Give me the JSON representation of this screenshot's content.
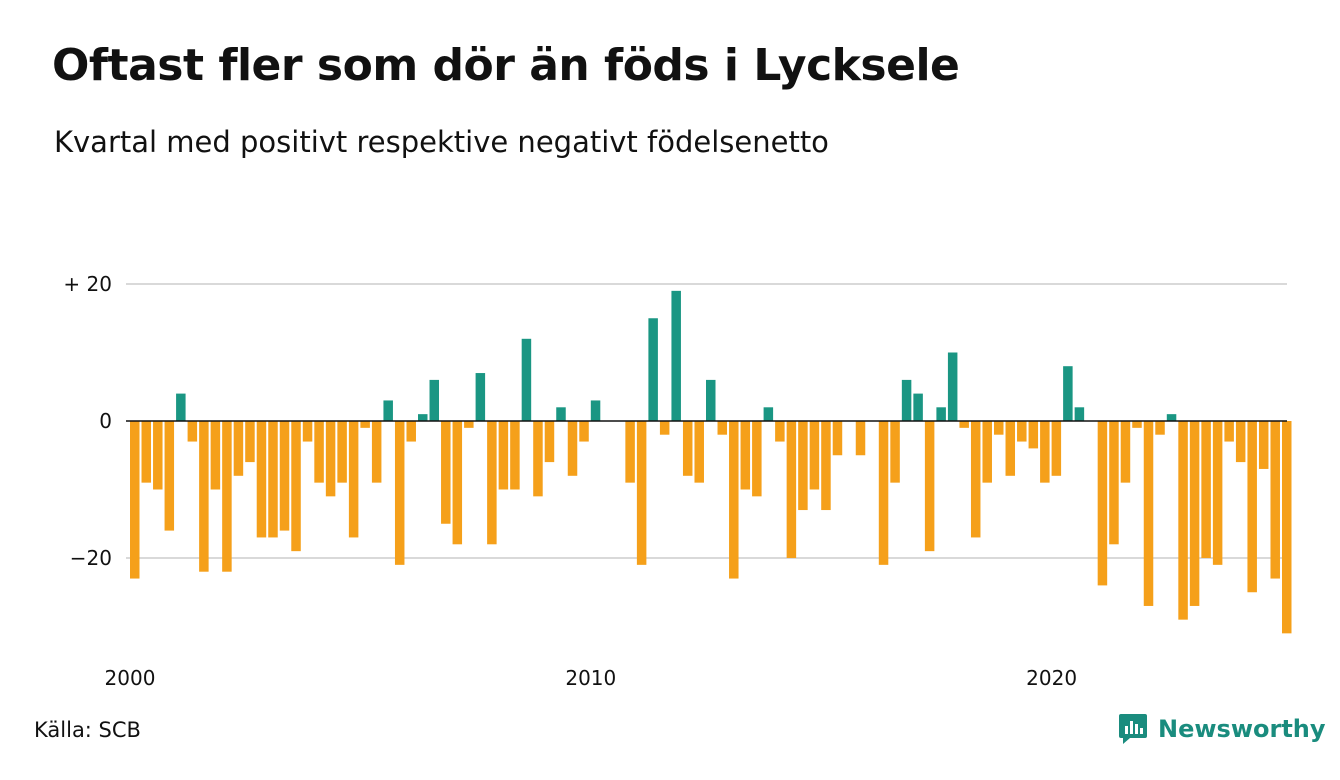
{
  "title": "Oftast fler som dör än föds i Lycksele",
  "subtitle": "Kvartal med positivt respektive negativt födelsenetto",
  "source": "Källa: SCB",
  "brand": {
    "name": "Newsworthy",
    "icon": "newsworthy-logo-icon"
  },
  "colors": {
    "positive": "#1a9683",
    "negative": "#f5a01a",
    "grid": "#d9d9d9",
    "axis": "#111111"
  },
  "chart_data": {
    "type": "bar",
    "x_start": "2000 Q1",
    "yticks": [
      {
        "value": 20,
        "label": "+ 20"
      },
      {
        "value": 0,
        "label": "0"
      },
      {
        "value": -20,
        "label": "−20"
      }
    ],
    "xticks": [
      {
        "label": "2000",
        "index": 0
      },
      {
        "label": "2010",
        "index": 40
      },
      {
        "label": "2020",
        "index": 80
      }
    ],
    "ylim": [
      -31,
      20
    ],
    "grid": true,
    "values": [
      -23,
      -9,
      -10,
      -16,
      4,
      -3,
      -22,
      -10,
      -22,
      -8,
      -6,
      -17,
      -17,
      -16,
      -19,
      -3,
      -9,
      -11,
      -9,
      -17,
      -1,
      -9,
      3,
      -21,
      -3,
      1,
      6,
      -15,
      -18,
      -1,
      7,
      -18,
      -10,
      -10,
      12,
      -11,
      -6,
      2,
      -8,
      -3,
      3,
      0,
      0,
      -9,
      -21,
      15,
      -2,
      19,
      -8,
      -9,
      6,
      -2,
      -23,
      -10,
      -11,
      2,
      -3,
      -20,
      -13,
      -10,
      -13,
      -5,
      0,
      -5,
      0,
      -21,
      -9,
      6,
      4,
      -19,
      2,
      10,
      -1,
      -17,
      -9,
      -2,
      -8,
      -3,
      -4,
      -9,
      -8,
      8,
      2,
      0,
      -24,
      -18,
      -9,
      -1,
      -27,
      -2,
      1,
      -29,
      -27,
      -20,
      -21,
      -3,
      -6,
      -25,
      -7,
      -23,
      -31
    ]
  }
}
